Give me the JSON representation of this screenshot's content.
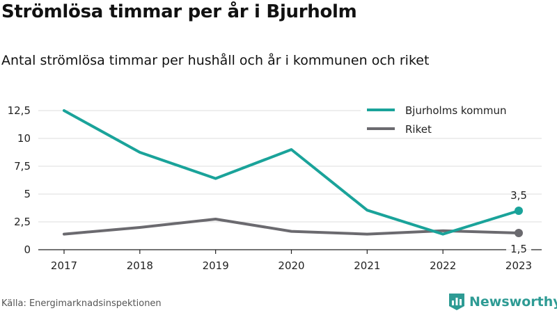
{
  "title": "Strömlösa timmar per år i Bjurholm",
  "subtitle": "Antal strömlösa timmar per hushåll och år i kommunen och riket",
  "source": "Källa: Energimarknadsinspektionen",
  "brand": {
    "name": "Newsworthy",
    "icon": "bar-chart-logo-icon",
    "color": "#2e9b94"
  },
  "chart_data": {
    "type": "line",
    "categories": [
      "2017",
      "2018",
      "2019",
      "2020",
      "2021",
      "2022",
      "2023"
    ],
    "series": [
      {
        "name": "Bjurholms kommun",
        "color": "#1aa39a",
        "values": [
          12.5,
          8.75,
          6.4,
          9.0,
          3.55,
          1.4,
          3.5
        ],
        "end_label": "3,5"
      },
      {
        "name": "Riket",
        "color": "#6b6a6f",
        "values": [
          1.4,
          2.0,
          2.75,
          1.65,
          1.4,
          1.7,
          1.5
        ],
        "end_label": "1,5"
      }
    ],
    "yticks": [
      "0",
      "2,5",
      "5",
      "7,5",
      "10",
      "12,5"
    ],
    "ylim": [
      0,
      12.5
    ],
    "grid": true,
    "legend": "top-right",
    "xlabel": "",
    "ylabel": ""
  }
}
